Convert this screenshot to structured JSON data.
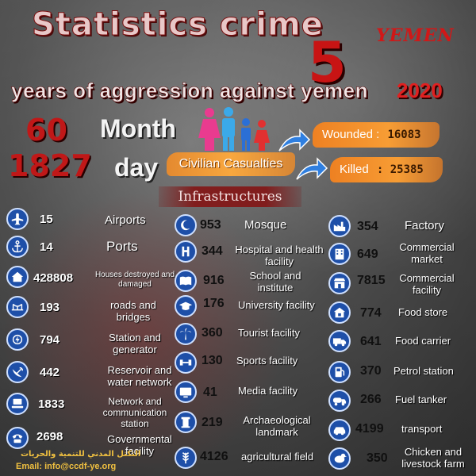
{
  "header": {
    "title": "Statistics crime",
    "five": "5",
    "country": "YEMEN",
    "subtitle": "years of aggression against yemen",
    "year": "2020"
  },
  "duration": {
    "months_value": "60",
    "months_label": "Month",
    "days_value": "1827",
    "days_label": "day"
  },
  "casualties": {
    "label": "Civilian Casualties",
    "wounded_label": "Wounded :",
    "wounded_value": "16083",
    "killed_label": "Killed",
    "killed_value": ": 25385"
  },
  "infrastructures_label": "Infrastructures",
  "left_column": [
    {
      "value": "15",
      "label": "Airports",
      "icon": "airplane-icon"
    },
    {
      "value": "14",
      "label": "Ports",
      "icon": "anchor-icon"
    },
    {
      "value": "428808",
      "label": "Houses destroyed and damaged",
      "icon": "house-icon"
    },
    {
      "value": "193",
      "label": "roads and bridges",
      "icon": "bridge-icon"
    },
    {
      "value": "794",
      "label": "Station and generator",
      "icon": "generator-icon"
    },
    {
      "value": "442",
      "label": "Reservoir and water network",
      "icon": "satellite-dish-icon"
    },
    {
      "value": "1833",
      "label": "Network and communication station",
      "icon": "network-icon"
    },
    {
      "value": "2698",
      "label": "Governmental facility",
      "icon": "phone-icon"
    }
  ],
  "middle_column": [
    {
      "value": "953",
      "label": "Mosque",
      "icon": "crescent-icon"
    },
    {
      "value": "344",
      "label": "Hospital and health facility",
      "icon": "hospital-icon"
    },
    {
      "value": "916",
      "label": "School and institute",
      "icon": "book-icon"
    },
    {
      "value": "176",
      "label": "University facility",
      "icon": "graduation-cap-icon"
    },
    {
      "value": "360",
      "label": "Tourist facility",
      "icon": "palm-tree-icon"
    },
    {
      "value": "130",
      "label": "Sports facility",
      "icon": "dumbbell-icon"
    },
    {
      "value": "41",
      "label": "Media facility",
      "icon": "media-icon"
    },
    {
      "value": "219",
      "label": "Archaeological landmark",
      "icon": "landmark-icon"
    },
    {
      "value": "4126",
      "label": "agricultural field",
      "icon": "wheat-icon"
    }
  ],
  "right_column": [
    {
      "value": "354",
      "label": "Factory",
      "icon": "factory-icon"
    },
    {
      "value": "649",
      "label": "Commercial market",
      "icon": "building-icon"
    },
    {
      "value": "7815",
      "label": "Commercial facility",
      "icon": "shop-icon"
    },
    {
      "value": "774",
      "label": "Food store",
      "icon": "store-icon"
    },
    {
      "value": "641",
      "label": "Food carrier",
      "icon": "truck-icon"
    },
    {
      "value": "370",
      "label": "Petrol station",
      "icon": "fuel-pump-icon"
    },
    {
      "value": "266",
      "label": "Fuel tanker",
      "icon": "tanker-icon"
    },
    {
      "value": "4199",
      "label": "transport",
      "icon": "car-icon"
    },
    {
      "value": "350",
      "label": "Chicken and livestock farm",
      "icon": "chicken-icon"
    }
  ],
  "footer": {
    "arabic": "التكتل المدني للتنمية والحريات",
    "email": "Email: info@ccdf-ye.org"
  },
  "colors": {
    "accent_red": "#c81414",
    "orange_box": "#f5821e",
    "icon_blue": "#1e4fa8"
  }
}
